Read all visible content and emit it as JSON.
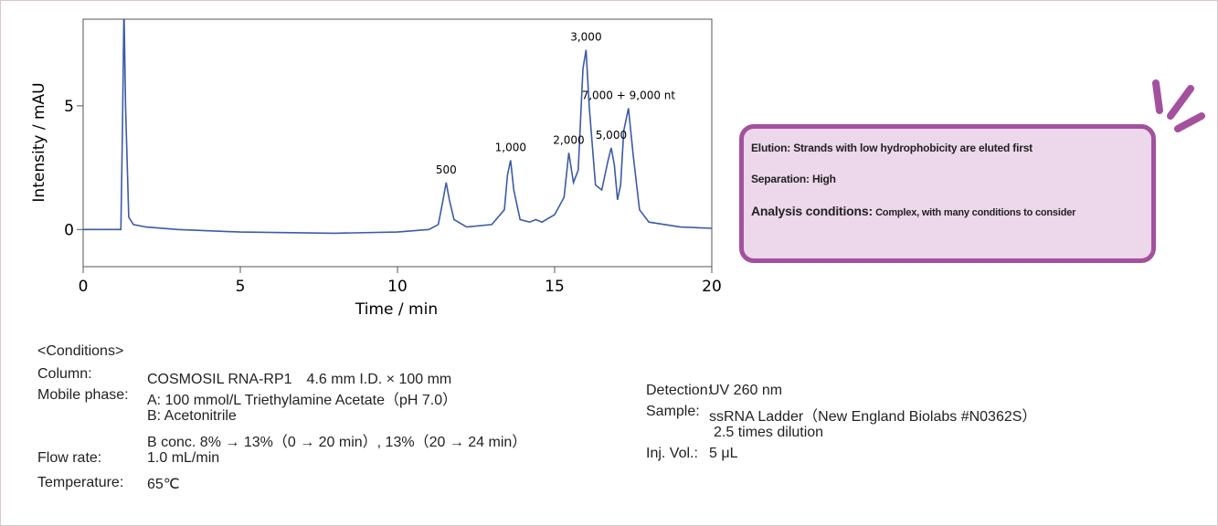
{
  "chart_data": {
    "type": "line",
    "xlabel": "Time / min",
    "ylabel": "Intensity / mAU",
    "x": [
      0,
      1.2,
      1.25,
      1.3,
      1.35,
      1.45,
      1.6,
      2,
      3,
      5,
      8,
      10,
      11,
      11.3,
      11.45,
      11.55,
      11.65,
      11.8,
      12.2,
      13,
      13.4,
      13.5,
      13.6,
      13.7,
      13.9,
      14.2,
      14.4,
      14.6,
      15,
      15.3,
      15.45,
      15.6,
      15.75,
      15.9,
      16.0,
      16.1,
      16.3,
      16.5,
      16.7,
      16.8,
      16.9,
      17.0,
      17.1,
      17.2,
      17.35,
      17.5,
      17.7,
      18,
      19,
      20
    ],
    "values": [
      0,
      0,
      4,
      9,
      5,
      0.5,
      0.2,
      0.1,
      0,
      -0.1,
      -0.15,
      -0.1,
      0,
      0.2,
      1.2,
      1.9,
      1.2,
      0.4,
      0.1,
      0.2,
      0.8,
      2.2,
      2.8,
      1.6,
      0.4,
      0.3,
      0.4,
      0.3,
      0.6,
      1.3,
      3.1,
      1.9,
      2.4,
      6.5,
      7.26,
      5,
      1.8,
      1.6,
      2.8,
      3.3,
      2.6,
      1.2,
      1.8,
      4,
      4.9,
      3,
      0.8,
      0.3,
      0.1,
      0.05
    ],
    "color": "#3b5ba5",
    "xlim": [
      0,
      20
    ],
    "xticks": [
      0,
      5,
      10,
      15,
      20
    ],
    "ylim": [
      -1.5,
      8.5
    ],
    "yticks": [
      0,
      5
    ],
    "annotations": [
      {
        "text": "500",
        "x": 11.55
      },
      {
        "text": "1,000",
        "x": 13.6
      },
      {
        "text": "2,000",
        "x": 15.45
      },
      {
        "text": "3,000",
        "x": 16.0
      },
      {
        "text": "5,000",
        "x": 16.8
      },
      {
        "text": "7,000 + 9,000 nt",
        "x": 17.35
      }
    ]
  },
  "panel": {
    "lines": [
      {
        "label": "Elution:",
        "text": "Strands with low hydrophobicity are eluted first"
      },
      {
        "label": "Separation:",
        "text": "High"
      },
      {
        "label": "Analysis conditions:",
        "text": "Complex, with many conditions to consider"
      }
    ]
  },
  "conditions": {
    "heading": "<Conditions>",
    "left": [
      {
        "label": "Column:",
        "lines": [
          "COSMOSIL RNA-RP1　4.6 mm I.D. × 100 mm"
        ]
      },
      {
        "label": "Mobile phase:",
        "lines": [
          "A: 100 mmol/L Triethylamine Acetate（pH 7.0）",
          "B: Acetonitrile",
          "B conc. 8% → 13%（0 → 20 min）, 13%（20 → 24 min）"
        ]
      },
      {
        "label": "Flow rate:",
        "lines": [
          "1.0 mL/min"
        ]
      },
      {
        "label": "Temperature:",
        "lines": [
          "65℃"
        ]
      }
    ],
    "right": [
      {
        "label": "Detection:",
        "lines": [
          "UV 260 nm"
        ]
      },
      {
        "label": "Sample:",
        "lines": [
          "ssRNA Ladder（New England Biolabs #N0362S）",
          "2.5 times dilution"
        ]
      },
      {
        "label": "Inj. Vol.:",
        "lines": [
          "5 μL"
        ]
      }
    ]
  }
}
